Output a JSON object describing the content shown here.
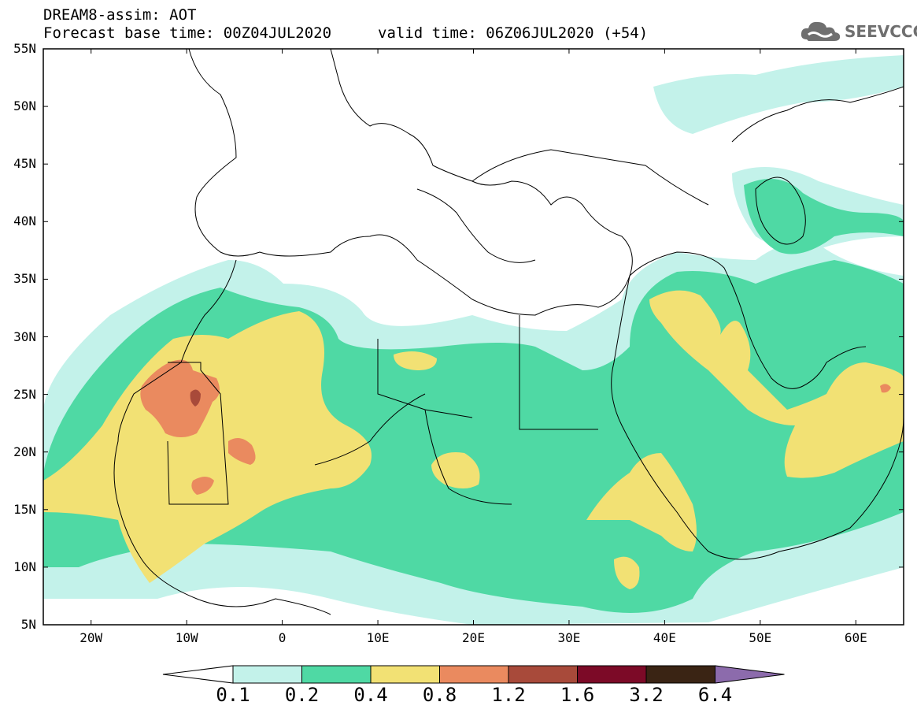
{
  "header": {
    "title": "DREAM8-assim: AOT",
    "base_time": "Forecast base time: 00Z04JUL2020",
    "valid_time": "valid time: 06Z06JUL2020 (+54)",
    "logo_text": "SEEVCCC"
  },
  "map": {
    "projection": "lat-lon",
    "lon_range": [
      -25,
      65
    ],
    "lat_range": [
      5,
      55
    ],
    "lat_ticks": [
      {
        "value": 55,
        "label": "55N"
      },
      {
        "value": 50,
        "label": "50N"
      },
      {
        "value": 45,
        "label": "45N"
      },
      {
        "value": 40,
        "label": "40N"
      },
      {
        "value": 35,
        "label": "35N"
      },
      {
        "value": 30,
        "label": "30N"
      },
      {
        "value": 25,
        "label": "25N"
      },
      {
        "value": 20,
        "label": "20N"
      },
      {
        "value": 15,
        "label": "15N"
      },
      {
        "value": 10,
        "label": "10N"
      },
      {
        "value": 5,
        "label": "5N"
      }
    ],
    "lon_ticks": [
      {
        "value": -20,
        "label": "20W"
      },
      {
        "value": -10,
        "label": "10W"
      },
      {
        "value": 0,
        "label": "0"
      },
      {
        "value": 10,
        "label": "10E"
      },
      {
        "value": 20,
        "label": "20E"
      },
      {
        "value": 30,
        "label": "30E"
      },
      {
        "value": 40,
        "label": "40E"
      },
      {
        "value": 50,
        "label": "50E"
      },
      {
        "value": 60,
        "label": "60E"
      }
    ]
  },
  "legend": {
    "levels": [
      "0.1",
      "0.2",
      "0.4",
      "0.8",
      "1.2",
      "1.6",
      "3.2",
      "6.4"
    ],
    "colors": [
      "#c3f2ea",
      "#4fd9a4",
      "#f2e174",
      "#ea8a5f",
      "#a84a3a",
      "#7c0a27",
      "#3a2414",
      "#8c6bac"
    ],
    "under_color": "#ffffff"
  },
  "colors": {
    "very_low": "#c3f2ea",
    "low": "#4fd9a4",
    "medium": "#f2e174",
    "high": "#ea8a5f",
    "very_high": "#a84a3a"
  }
}
